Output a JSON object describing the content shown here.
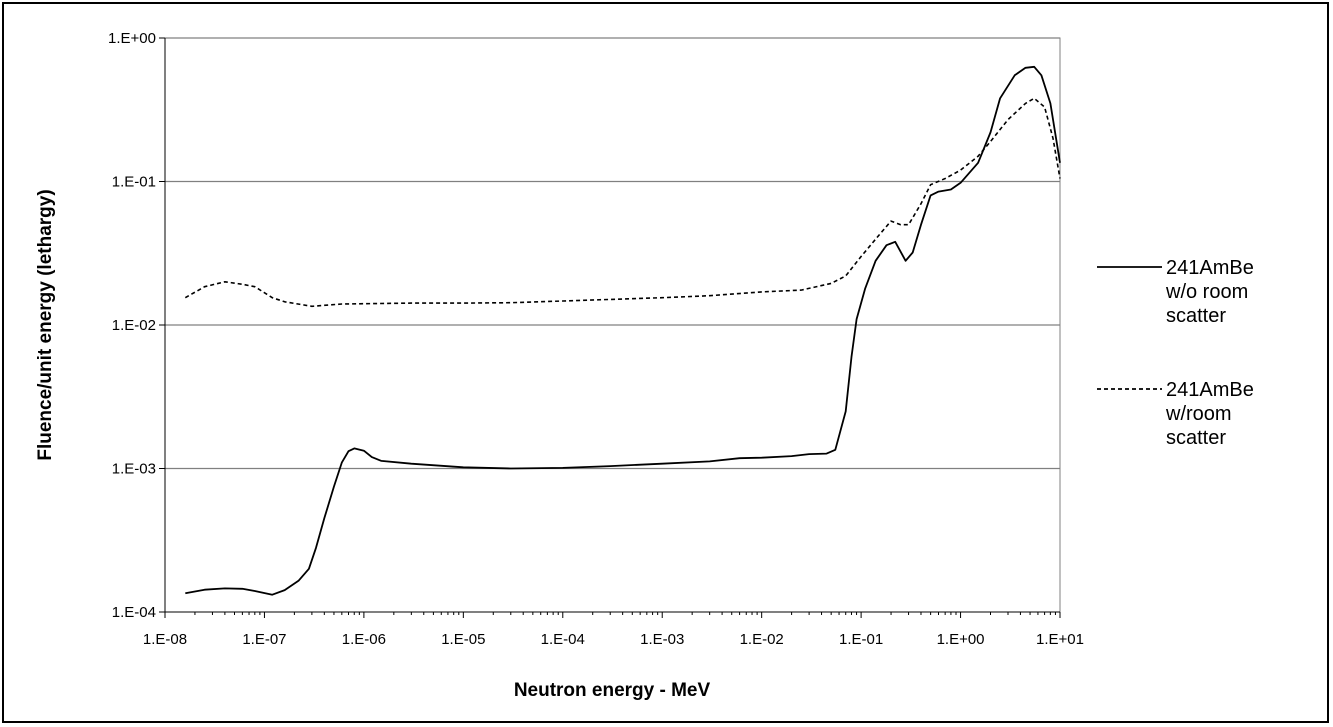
{
  "chart_data": {
    "type": "line",
    "xlabel": "Neutron energy - MeV",
    "ylabel": "Fluence/unit energy (lethargy)",
    "xscale": "log",
    "yscale": "log",
    "xlim": [
      1e-08,
      10
    ],
    "ylim": [
      0.0001,
      1
    ],
    "grid": "horizontal major lines",
    "legend_position": "right",
    "x_ticks": [
      {
        "value": 1e-08,
        "label": "1.E-08"
      },
      {
        "value": 1e-07,
        "label": "1.E-07"
      },
      {
        "value": 1e-06,
        "label": "1.E-06"
      },
      {
        "value": 1e-05,
        "label": "1.E-05"
      },
      {
        "value": 0.0001,
        "label": "1.E-04"
      },
      {
        "value": 0.001,
        "label": "1.E-03"
      },
      {
        "value": 0.01,
        "label": "1.E-02"
      },
      {
        "value": 0.1,
        "label": "1.E-01"
      },
      {
        "value": 1,
        "label": "1.E+00"
      },
      {
        "value": 10,
        "label": "1.E+01"
      }
    ],
    "y_ticks": [
      {
        "value": 0.0001,
        "label": "1.E-04"
      },
      {
        "value": 0.001,
        "label": "1.E-03"
      },
      {
        "value": 0.01,
        "label": "1.E-02"
      },
      {
        "value": 0.1,
        "label": "1.E-01"
      },
      {
        "value": 1,
        "label": "1.E+00"
      }
    ],
    "series": [
      {
        "name": "241AmBe w/o room scatter",
        "legend_lines": [
          "241AmBe",
          "w/o room",
          "scatter"
        ],
        "style": "solid",
        "color": "#000000",
        "points": [
          [
            1.6e-08,
            0.000135
          ],
          [
            2.5e-08,
            0.000143
          ],
          [
            4e-08,
            0.000146
          ],
          [
            6e-08,
            0.000145
          ],
          [
            8e-08,
            0.00014
          ],
          [
            1.2e-07,
            0.000132
          ],
          [
            1.6e-07,
            0.000142
          ],
          [
            2.2e-07,
            0.000165
          ],
          [
            2.8e-07,
            0.0002
          ],
          [
            3.3e-07,
            0.00028
          ],
          [
            4e-07,
            0.00045
          ],
          [
            5e-07,
            0.00075
          ],
          [
            6e-07,
            0.0011
          ],
          [
            7e-07,
            0.00132
          ],
          [
            8e-07,
            0.00138
          ],
          [
            1e-06,
            0.00133
          ],
          [
            1.2e-06,
            0.0012
          ],
          [
            1.5e-06,
            0.00113
          ],
          [
            3e-06,
            0.00108
          ],
          [
            1e-05,
            0.00102
          ],
          [
            3e-05,
            0.001
          ],
          [
            0.0001,
            0.00101
          ],
          [
            0.0003,
            0.00104
          ],
          [
            0.001,
            0.00108
          ],
          [
            0.003,
            0.00112
          ],
          [
            0.006,
            0.00118
          ],
          [
            0.01,
            0.00119
          ],
          [
            0.02,
            0.00122
          ],
          [
            0.03,
            0.00126
          ],
          [
            0.045,
            0.00127
          ],
          [
            0.055,
            0.00135
          ],
          [
            0.07,
            0.0025
          ],
          [
            0.08,
            0.006
          ],
          [
            0.09,
            0.011
          ],
          [
            0.11,
            0.018
          ],
          [
            0.14,
            0.028
          ],
          [
            0.18,
            0.036
          ],
          [
            0.22,
            0.038
          ],
          [
            0.28,
            0.028
          ],
          [
            0.33,
            0.032
          ],
          [
            0.4,
            0.05
          ],
          [
            0.5,
            0.08
          ],
          [
            0.6,
            0.085
          ],
          [
            0.8,
            0.088
          ],
          [
            1.0,
            0.098
          ],
          [
            1.5,
            0.135
          ],
          [
            2.0,
            0.22
          ],
          [
            2.5,
            0.38
          ],
          [
            3.5,
            0.55
          ],
          [
            4.5,
            0.62
          ],
          [
            5.5,
            0.63
          ],
          [
            6.5,
            0.55
          ],
          [
            8.0,
            0.35
          ],
          [
            10.0,
            0.135
          ]
        ]
      },
      {
        "name": "241AmBe w/room scatter",
        "legend_lines": [
          "241AmBe",
          "w/room",
          "scatter"
        ],
        "style": "dotted",
        "color": "#000000",
        "points": [
          [
            1.6e-08,
            0.0155
          ],
          [
            2.5e-08,
            0.0185
          ],
          [
            4e-08,
            0.02
          ],
          [
            6e-08,
            0.0192
          ],
          [
            8e-08,
            0.0185
          ],
          [
            1.2e-07,
            0.0155
          ],
          [
            1.6e-07,
            0.0145
          ],
          [
            3e-07,
            0.0135
          ],
          [
            6e-07,
            0.014
          ],
          [
            3e-06,
            0.0142
          ],
          [
            1e-05,
            0.0142
          ],
          [
            3e-05,
            0.0143
          ],
          [
            0.0001,
            0.0147
          ],
          [
            0.001,
            0.0155
          ],
          [
            0.003,
            0.016
          ],
          [
            0.01,
            0.017
          ],
          [
            0.025,
            0.0175
          ],
          [
            0.05,
            0.0195
          ],
          [
            0.07,
            0.022
          ],
          [
            0.1,
            0.03
          ],
          [
            0.15,
            0.042
          ],
          [
            0.2,
            0.053
          ],
          [
            0.25,
            0.05
          ],
          [
            0.3,
            0.05
          ],
          [
            0.4,
            0.07
          ],
          [
            0.5,
            0.095
          ],
          [
            0.7,
            0.105
          ],
          [
            1.0,
            0.12
          ],
          [
            1.5,
            0.15
          ],
          [
            2.0,
            0.19
          ],
          [
            3.0,
            0.27
          ],
          [
            4.5,
            0.35
          ],
          [
            5.5,
            0.38
          ],
          [
            7.0,
            0.33
          ],
          [
            8.5,
            0.2
          ],
          [
            10.0,
            0.105
          ]
        ]
      }
    ]
  }
}
